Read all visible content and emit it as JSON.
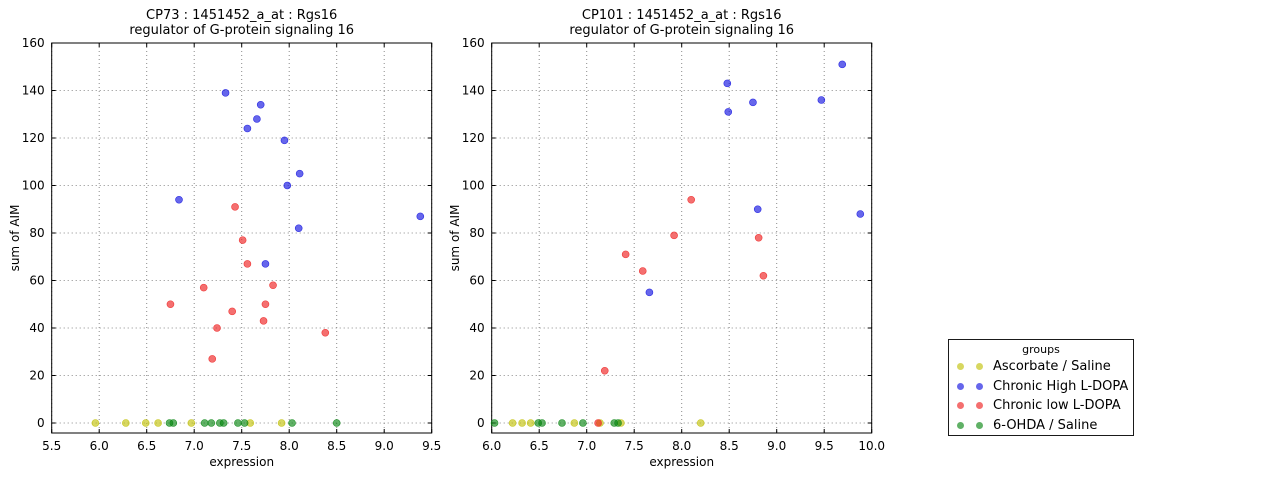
{
  "legend": {
    "title": "groups",
    "marker_alpha": 0.65,
    "entries": [
      {
        "label": "Ascorbate / Saline",
        "color": "#c2c20a"
      },
      {
        "label": "Chronic High L-DOPA",
        "color": "#1414e0"
      },
      {
        "label": "Chronic low L-DOPA",
        "color": "#ee2222"
      },
      {
        "label": "6-OHDA / Saline",
        "color": "#0a8714"
      }
    ]
  },
  "chart_data": [
    {
      "type": "scatter",
      "title_line1": "CP73 : 1451452_a_at : Rgs16",
      "title_line2": "regulator of G-protein signaling 16",
      "xlabel": "expression",
      "ylabel": "sum of AIM",
      "xlim": [
        5.5,
        9.5
      ],
      "ylim": [
        0,
        160
      ],
      "grid": true,
      "xticks": [
        5.5,
        6.0,
        6.5,
        7.0,
        7.5,
        8.0,
        8.5,
        9.0,
        9.5
      ],
      "xtick_labels": [
        "5.5",
        "6.0",
        "6.5",
        "7.0",
        "7.5",
        "8.0",
        "8.5",
        "9.0",
        "9.5"
      ],
      "yticks": [
        0,
        20,
        40,
        60,
        80,
        100,
        120,
        140,
        160
      ],
      "ytick_labels": [
        "0",
        "20",
        "40",
        "60",
        "80",
        "100",
        "120",
        "140",
        "160"
      ],
      "series": [
        {
          "name": "Ascorbate / Saline",
          "color": "#c2c20a",
          "points": [
            [
              5.96,
              0
            ],
            [
              6.28,
              0
            ],
            [
              6.49,
              0
            ],
            [
              6.62,
              0
            ],
            [
              6.97,
              0
            ],
            [
              7.59,
              0
            ],
            [
              7.92,
              0
            ]
          ]
        },
        {
          "name": "Chronic High L-DOPA",
          "color": "#1414e0",
          "points": [
            [
              6.84,
              94
            ],
            [
              7.33,
              139
            ],
            [
              7.56,
              124
            ],
            [
              7.66,
              128
            ],
            [
              7.7,
              134
            ],
            [
              7.75,
              67
            ],
            [
              7.95,
              119
            ],
            [
              7.98,
              100
            ],
            [
              8.1,
              82
            ],
            [
              8.11,
              105
            ],
            [
              9.38,
              87
            ]
          ]
        },
        {
          "name": "Chronic low L-DOPA",
          "color": "#ee2222",
          "points": [
            [
              6.75,
              50
            ],
            [
              7.1,
              57
            ],
            [
              7.19,
              27
            ],
            [
              7.24,
              40
            ],
            [
              7.4,
              47
            ],
            [
              7.43,
              91
            ],
            [
              7.51,
              77
            ],
            [
              7.56,
              67
            ],
            [
              7.73,
              43
            ],
            [
              7.75,
              50
            ],
            [
              7.83,
              58
            ],
            [
              8.38,
              38
            ]
          ]
        },
        {
          "name": "6-OHDA / Saline",
          "color": "#0a8714",
          "points": [
            [
              6.74,
              0
            ],
            [
              6.78,
              0
            ],
            [
              7.11,
              0
            ],
            [
              7.18,
              0
            ],
            [
              7.27,
              0
            ],
            [
              7.31,
              0
            ],
            [
              7.46,
              0
            ],
            [
              7.53,
              0
            ],
            [
              8.03,
              0
            ],
            [
              8.5,
              0
            ]
          ]
        }
      ]
    },
    {
      "type": "scatter",
      "title_line1": "CP101 : 1451452_a_at : Rgs16",
      "title_line2": "regulator of G-protein signaling 16",
      "xlabel": "expression",
      "ylabel": "sum of AIM",
      "xlim": [
        6.0,
        10.0
      ],
      "ylim": [
        0,
        160
      ],
      "grid": true,
      "xticks": [
        6.0,
        6.5,
        7.0,
        7.5,
        8.0,
        8.5,
        9.0,
        9.5,
        10.0
      ],
      "xtick_labels": [
        "6.0",
        "6.5",
        "7.0",
        "7.5",
        "8.0",
        "8.5",
        "9.0",
        "9.5",
        "10.0"
      ],
      "yticks": [
        0,
        20,
        40,
        60,
        80,
        100,
        120,
        140,
        160
      ],
      "ytick_labels": [
        "0",
        "20",
        "40",
        "60",
        "80",
        "100",
        "120",
        "140",
        "160"
      ],
      "series": [
        {
          "name": "Ascorbate / Saline",
          "color": "#c2c20a",
          "points": [
            [
              6.22,
              0
            ],
            [
              6.32,
              0
            ],
            [
              6.41,
              0
            ],
            [
              6.87,
              0
            ],
            [
              7.14,
              0
            ],
            [
              7.36,
              0
            ],
            [
              8.2,
              0
            ]
          ]
        },
        {
          "name": "Chronic High L-DOPA",
          "color": "#1414e0",
          "points": [
            [
              7.66,
              55
            ],
            [
              8.48,
              143
            ],
            [
              8.49,
              131
            ],
            [
              8.75,
              135
            ],
            [
              8.8,
              90
            ],
            [
              9.47,
              136
            ],
            [
              9.69,
              151
            ],
            [
              9.88,
              88
            ]
          ]
        },
        {
          "name": "Chronic low L-DOPA",
          "color": "#ee2222",
          "points": [
            [
              7.12,
              0
            ],
            [
              7.19,
              22
            ],
            [
              7.41,
              71
            ],
            [
              7.59,
              64
            ],
            [
              7.92,
              79
            ],
            [
              8.1,
              94
            ],
            [
              8.81,
              78
            ],
            [
              8.86,
              62
            ]
          ]
        },
        {
          "name": "6-OHDA / Saline",
          "color": "#0a8714",
          "points": [
            [
              6.03,
              0
            ],
            [
              6.49,
              0
            ],
            [
              6.53,
              0
            ],
            [
              6.74,
              0
            ],
            [
              6.96,
              0
            ],
            [
              7.29,
              0
            ],
            [
              7.33,
              0
            ]
          ]
        }
      ]
    }
  ]
}
